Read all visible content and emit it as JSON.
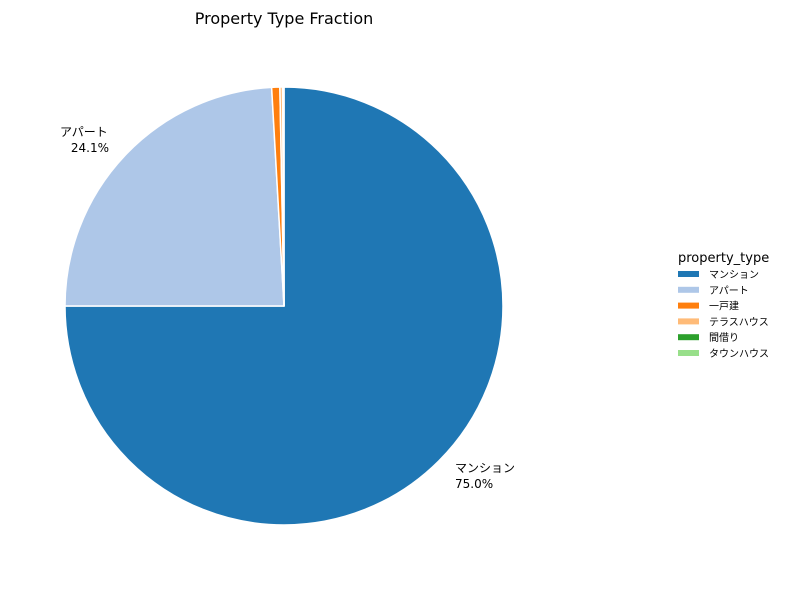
{
  "chart_data": {
    "type": "pie",
    "title": "Property Type Fraction",
    "categories": [
      "マンション",
      "アパート",
      "一戸建",
      "テラスハウス",
      "間借り",
      "タウンハウス"
    ],
    "values": [
      75.0,
      24.1,
      0.6,
      0.2,
      0.05,
      0.05
    ],
    "labels": [
      {
        "name": "マンション",
        "pct": "75.0%"
      },
      {
        "name": "アパート",
        "pct": "24.1%"
      }
    ],
    "colors": [
      "#1f77b4",
      "#aec7e8",
      "#ff7f0e",
      "#ffbb78",
      "#2ca02c",
      "#98df8a"
    ],
    "legend": {
      "title": "property_type",
      "placement": "center-right",
      "entries": [
        "マンション",
        "アパート",
        "一戸建",
        "テラスハウス",
        "間借り",
        "タウンハウス"
      ]
    }
  }
}
